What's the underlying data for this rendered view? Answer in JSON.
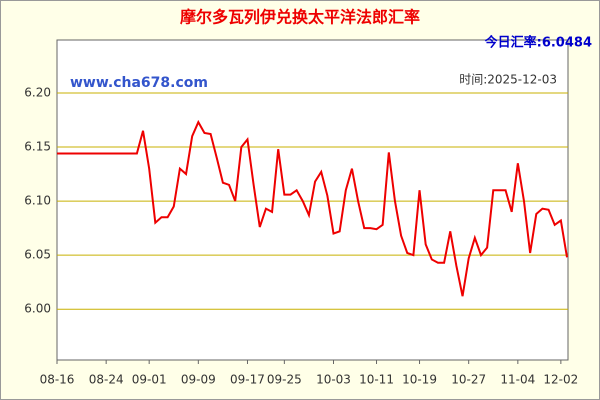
{
  "chart_data": {
    "type": "line",
    "title": "摩尔多瓦列伊兑换太平洋法郎汇率",
    "rate_label": "今日汇率:6.0484",
    "site": "www.cha678.com",
    "date_label": "时间:2025-12-03",
    "categories": [
      "08-16",
      null,
      null,
      null,
      null,
      null,
      null,
      null,
      "08-24",
      null,
      null,
      null,
      null,
      null,
      null,
      "09-01",
      null,
      null,
      null,
      null,
      null,
      null,
      null,
      "09-09",
      null,
      null,
      null,
      null,
      null,
      null,
      null,
      "09-17",
      null,
      null,
      null,
      null,
      null,
      "09-25",
      null,
      null,
      null,
      null,
      null,
      null,
      null,
      "10-03",
      null,
      null,
      null,
      null,
      null,
      null,
      "10-11",
      null,
      null,
      null,
      null,
      null,
      null,
      "10-19",
      null,
      null,
      null,
      null,
      null,
      null,
      null,
      "10-27",
      null,
      null,
      null,
      null,
      null,
      null,
      null,
      "11-04",
      null,
      null,
      null,
      null,
      null,
      null,
      "12-02",
      null
    ],
    "series": [
      {
        "color": "#ee0000",
        "values": [
          6.144,
          6.144,
          6.144,
          6.144,
          6.144,
          6.144,
          6.144,
          6.144,
          6.144,
          6.144,
          6.144,
          6.144,
          6.144,
          6.144,
          6.165,
          6.13,
          6.08,
          6.085,
          6.085,
          6.095,
          6.13,
          6.125,
          6.16,
          6.173,
          6.163,
          6.162,
          6.14,
          6.117,
          6.115,
          6.1,
          6.15,
          6.157,
          6.115,
          6.076,
          6.093,
          6.09,
          6.148,
          6.106,
          6.106,
          6.11,
          6.1,
          6.087,
          6.118,
          6.127,
          6.105,
          6.07,
          6.072,
          6.11,
          6.13,
          6.1,
          6.075,
          6.075,
          6.074,
          6.078,
          6.145,
          6.1,
          6.068,
          6.052,
          6.05,
          6.11,
          6.06,
          6.046,
          6.043,
          6.043,
          6.072,
          6.04,
          6.012,
          6.047,
          6.066,
          6.05,
          6.057,
          6.11,
          6.11,
          6.11,
          6.09,
          6.135,
          6.1,
          6.052,
          6.088,
          6.093,
          6.092,
          6.078,
          6.082,
          6.048
        ]
      }
    ],
    "ylim": [
      5.953,
      6.249
    ],
    "yticks": [
      {
        "value": 6.2,
        "label": "6.20"
      },
      6.15,
      {
        "value": 6.1,
        "label": "6.10"
      },
      6.05,
      {
        "value": 6.0,
        "label": "6.00"
      }
    ],
    "grid": true
  }
}
